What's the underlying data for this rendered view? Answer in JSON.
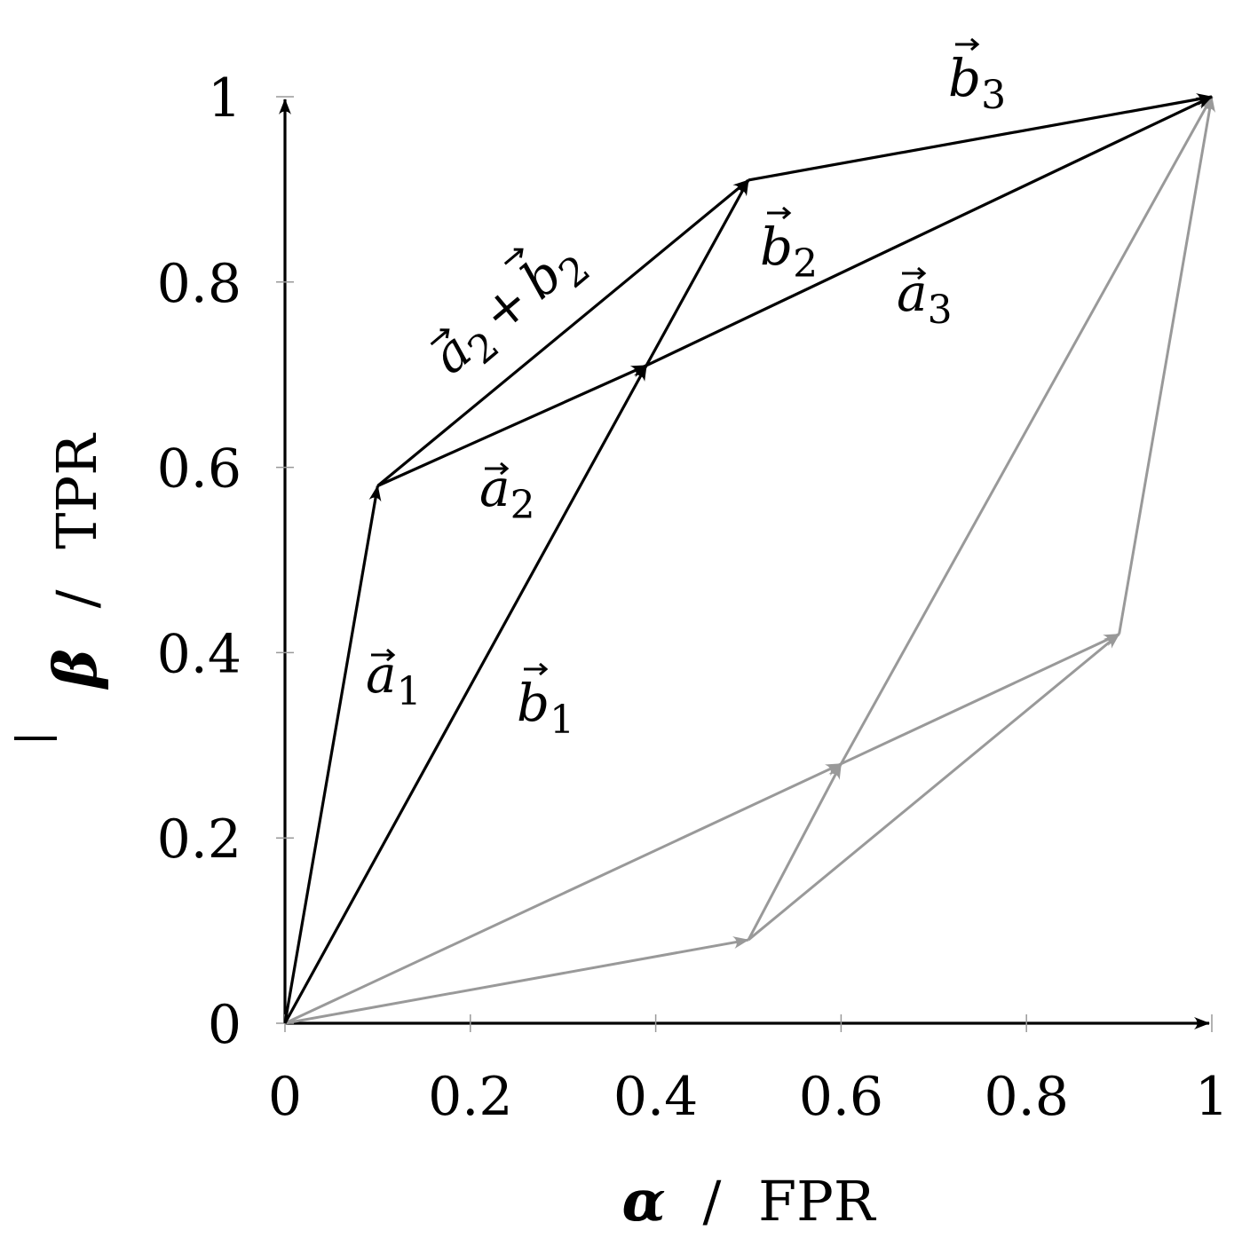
{
  "axes": {
    "x_title": {
      "symbol": "α",
      "separator": "/",
      "text": "FPR"
    },
    "y_title": {
      "symbol": "β",
      "separator": "/",
      "text": "TPR"
    },
    "x_ticks": [
      "0",
      "0.2",
      "0.4",
      "0.6",
      "0.8",
      "1"
    ],
    "y_ticks": [
      "0",
      "0.2",
      "0.4",
      "0.6",
      "0.8",
      "1"
    ],
    "x_range": [
      0,
      1
    ],
    "y_range": [
      0,
      1
    ]
  },
  "colors": {
    "primary": "#000000",
    "reflected": "#999999"
  },
  "vectors_primary": [
    {
      "id": "a1",
      "from": [
        0,
        0
      ],
      "to": [
        0.1,
        0.58
      ]
    },
    {
      "id": "b1",
      "from": [
        0,
        0
      ],
      "to": [
        0.39,
        0.71
      ]
    },
    {
      "id": "a2",
      "from": [
        0.1,
        0.58
      ],
      "to": [
        0.39,
        0.71
      ]
    },
    {
      "id": "a2b2",
      "from": [
        0.1,
        0.58
      ],
      "to": [
        0.5,
        0.91
      ]
    },
    {
      "id": "b2",
      "from": [
        0.39,
        0.71
      ],
      "to": [
        0.5,
        0.91
      ]
    },
    {
      "id": "a3",
      "from": [
        0.39,
        0.71
      ],
      "to": [
        1,
        1
      ]
    },
    {
      "id": "b3",
      "from": [
        0.5,
        0.91
      ],
      "to": [
        1,
        1
      ]
    }
  ],
  "vectors_reflected": [
    {
      "id": "a1r",
      "from": [
        0,
        0
      ],
      "to": [
        0.5,
        0.09
      ]
    },
    {
      "id": "b1r",
      "from": [
        0,
        0
      ],
      "to": [
        0.6,
        0.28
      ]
    },
    {
      "id": "a2r",
      "from": [
        0.5,
        0.09
      ],
      "to": [
        0.6,
        0.28
      ]
    },
    {
      "id": "a2b2r",
      "from": [
        0.5,
        0.09
      ],
      "to": [
        0.9,
        0.42
      ]
    },
    {
      "id": "b2r",
      "from": [
        0.6,
        0.28
      ],
      "to": [
        0.9,
        0.42
      ]
    },
    {
      "id": "a3r",
      "from": [
        0.6,
        0.28
      ],
      "to": [
        1,
        1
      ]
    },
    {
      "id": "b3r",
      "from": [
        0.9,
        0.42
      ],
      "to": [
        1,
        1
      ]
    }
  ],
  "labels": {
    "a1": {
      "letter": "a",
      "sub": "1"
    },
    "b1": {
      "letter": "b",
      "sub": "1"
    },
    "a2": {
      "letter": "a",
      "sub": "2"
    },
    "b2": {
      "letter": "b",
      "sub": "2"
    },
    "a3": {
      "letter": "a",
      "sub": "3"
    },
    "b3": {
      "letter": "b",
      "sub": "3"
    },
    "a2b2": {
      "letter1": "a",
      "sub1": "2",
      "plus": "+",
      "letter2": "b",
      "sub2": "2"
    }
  }
}
